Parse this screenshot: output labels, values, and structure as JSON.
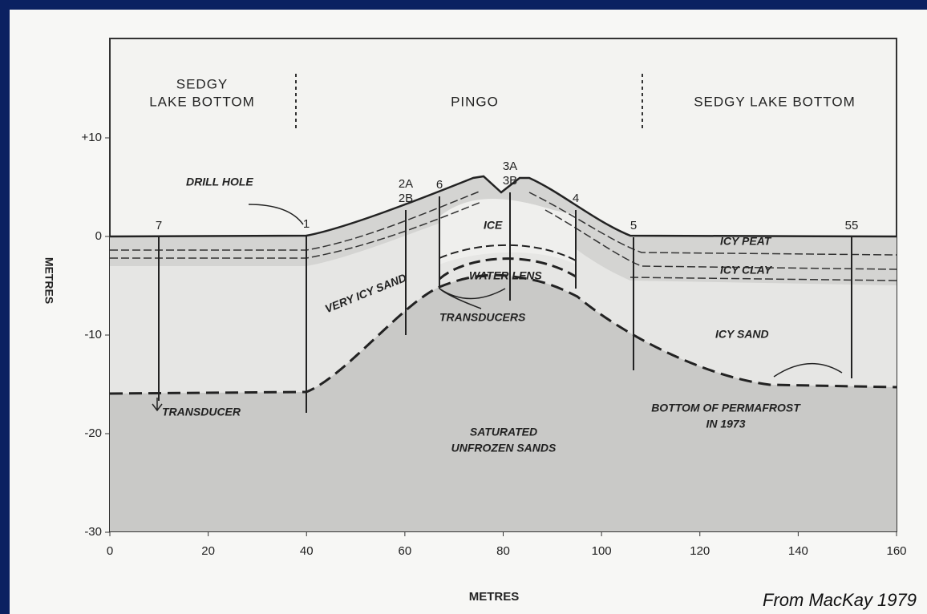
{
  "header": {
    "left": [
      "SEDGY",
      "LAKE BOTTOM"
    ],
    "center": "PINGO",
    "right": "SEDGY LAKE BOTTOM"
  },
  "drill_holes": [
    [
      "7"
    ],
    [
      "1"
    ],
    [
      "2A",
      "2B"
    ],
    [
      "6"
    ],
    [
      "3A",
      "3B"
    ],
    [
      "4"
    ],
    [
      "5"
    ],
    [
      "55"
    ]
  ],
  "labels": {
    "drill_hole": "DRILL HOLE",
    "ice": "ICE",
    "icy_peat": "ICY PEAT",
    "icy_clay": "ICY CLAY",
    "very_icy_sand": "VERY ICY SAND",
    "water_lens": "WATER LENS",
    "transducers": "TRANSDUCERS",
    "icy_sand": "ICY SAND",
    "transducer": "TRANSDUCER",
    "bottom": [
      "BOTTOM OF PERMAFROST",
      "IN 1973"
    ],
    "saturated": [
      "SATURATED",
      "UNFROZEN SANDS"
    ]
  },
  "axes": {
    "y_label": "METRES",
    "x_label": "METRES",
    "x_ticks": [
      0,
      20,
      40,
      60,
      80,
      100,
      120,
      140,
      160
    ],
    "y_ticks": [
      {
        "value": 10,
        "label": "+10"
      },
      0,
      -10,
      -20,
      -30
    ]
  },
  "credit": "From MacKay 1979"
}
